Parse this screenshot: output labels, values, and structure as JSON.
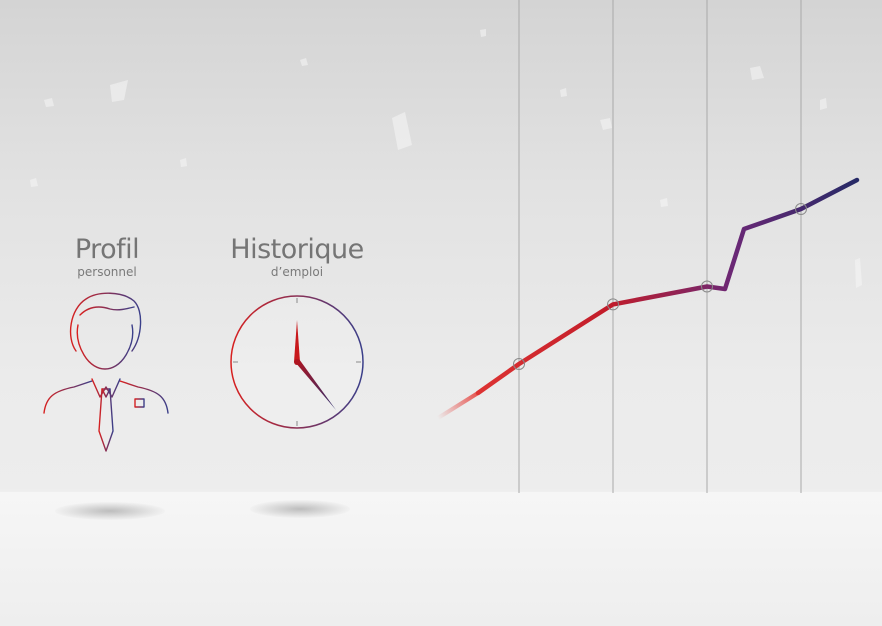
{
  "profile": {
    "title": "Profil",
    "subtitle": "personnel",
    "icon": "person-icon"
  },
  "history": {
    "title": "Historique",
    "subtitle": "d’emploi",
    "icon": "clock-icon"
  },
  "colors": {
    "gradient_start": "#d8201f",
    "gradient_end": "#2a2d6e",
    "text": "#757575"
  },
  "chart_data": {
    "type": "line",
    "x": [
      1,
      2,
      3,
      4
    ],
    "y": [
      1,
      2,
      2.3,
      3.6
    ],
    "title": "",
    "xlabel": "",
    "ylabel": "",
    "grid": false,
    "markers": "circle"
  }
}
